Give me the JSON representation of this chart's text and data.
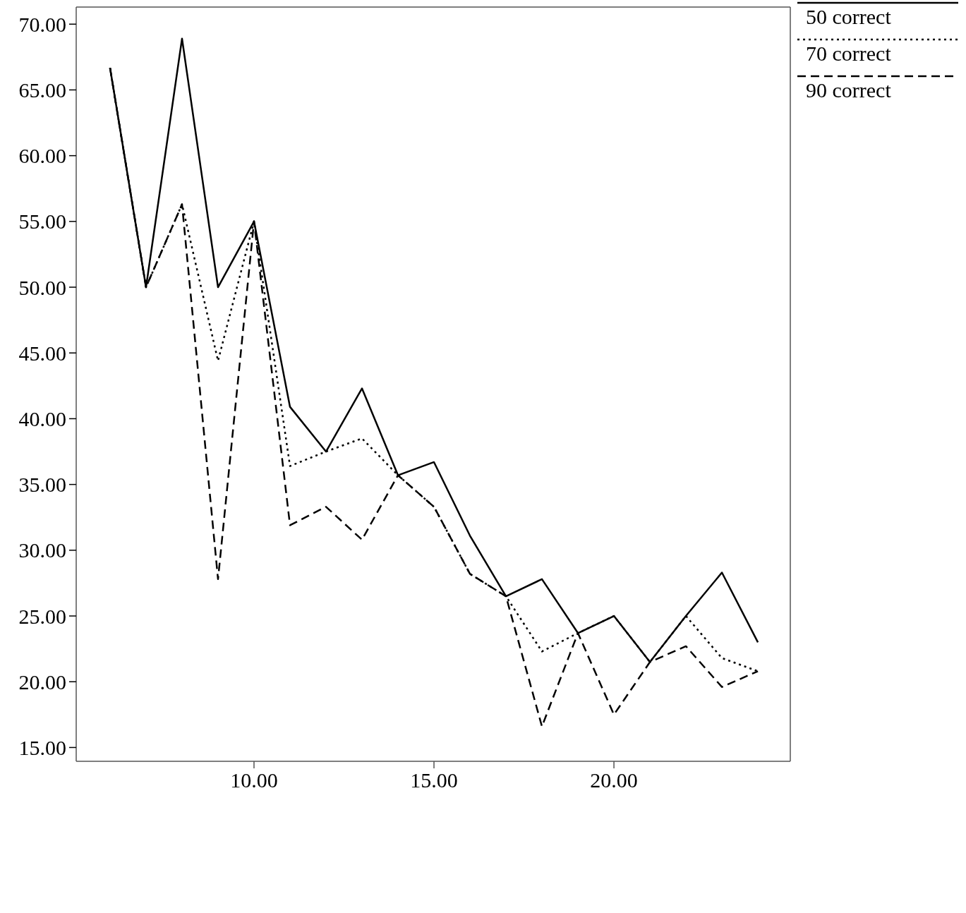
{
  "chart_data": {
    "type": "line",
    "x": [
      6,
      7,
      8,
      9,
      10,
      11,
      12,
      13,
      14,
      15,
      16,
      17,
      18,
      19,
      20,
      21,
      22,
      23,
      24
    ],
    "series": [
      {
        "name": "50 correct",
        "color": "#000000",
        "line_style": "solid",
        "values": [
          66.67,
          50,
          68.9,
          50,
          55,
          40.9,
          37.5,
          42.3,
          35.7,
          36.7,
          31.1,
          26.5,
          27.8,
          23.7,
          25,
          21.5,
          25,
          28.3,
          23
        ]
      },
      {
        "name": "70 correct",
        "color": "#000000",
        "line_style": "dotted",
        "values": [
          66.67,
          50,
          56.3,
          44.4,
          55,
          36.4,
          37.5,
          38.5,
          35.7,
          33.3,
          28.2,
          26.5,
          22.3,
          23.7,
          25,
          21.5,
          25,
          21.8,
          20.8
        ]
      },
      {
        "name": "90 correct",
        "color": "#000000",
        "line_style": "dashed",
        "values": [
          66.67,
          50,
          56.3,
          27.8,
          55,
          31.9,
          33.3,
          30.8,
          35.7,
          33.3,
          28.2,
          26.5,
          16.6,
          23.7,
          17.5,
          21.5,
          22.7,
          19.6,
          20.8
        ]
      }
    ],
    "xlim": [
      5.06,
      24.9
    ],
    "xticks": [
      {
        "value": 10,
        "label": "10.00"
      },
      {
        "value": 15,
        "label": "15.00"
      },
      {
        "value": 20,
        "label": "20.00"
      }
    ],
    "ylim": [
      13.95,
      71.3
    ],
    "yticks": [
      {
        "value": 15,
        "label": "15.00"
      },
      {
        "value": 20,
        "label": "20.00"
      },
      {
        "value": 25,
        "label": "25.00"
      },
      {
        "value": 30,
        "label": "30.00"
      },
      {
        "value": 35,
        "label": "35.00"
      },
      {
        "value": 40,
        "label": "40.00"
      },
      {
        "value": 45,
        "label": "45.00"
      },
      {
        "value": 50,
        "label": "50.00"
      },
      {
        "value": 55,
        "label": "55.00"
      },
      {
        "value": 60,
        "label": "60.00"
      },
      {
        "value": 65,
        "label": "65.00"
      },
      {
        "value": 70,
        "label": "70.00"
      }
    ],
    "grid": false,
    "legend": "top right",
    "marker": "none"
  }
}
